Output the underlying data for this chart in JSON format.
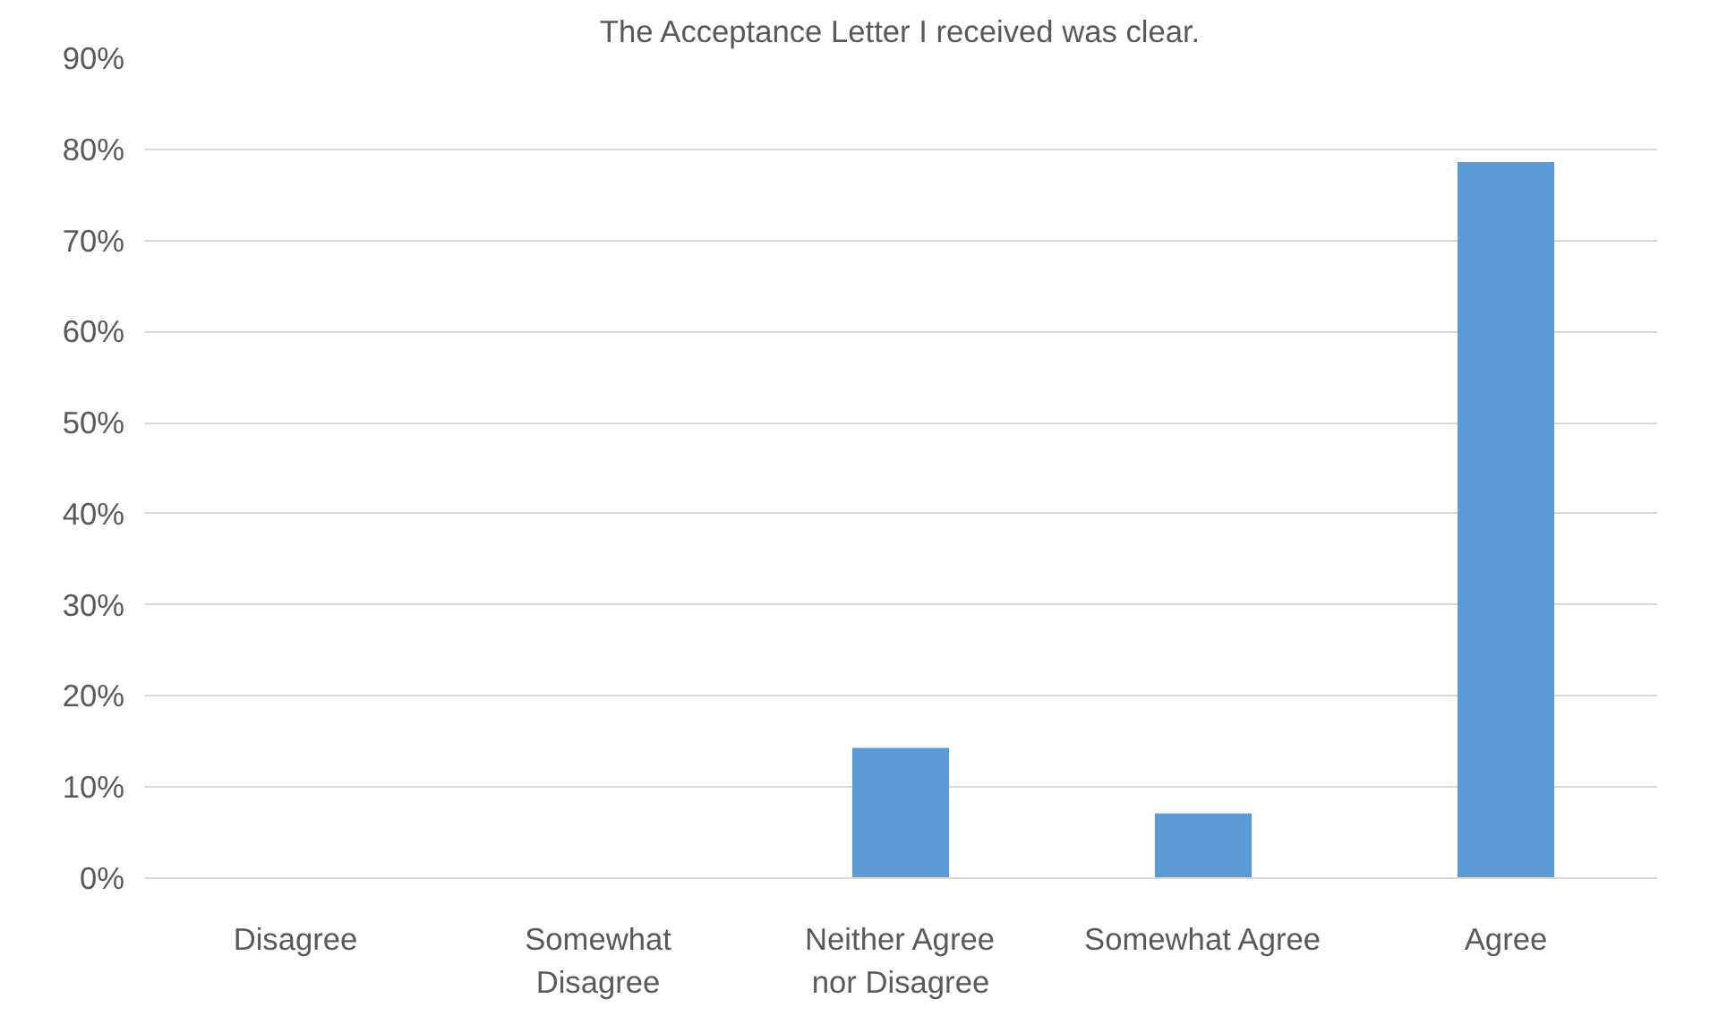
{
  "chart_data": {
    "type": "bar",
    "title": "The Acceptance Letter I received was clear.",
    "categories": [
      "Disagree",
      "Somewhat Disagree",
      "Neither Agree nor Disagree",
      "Somewhat Agree",
      "Agree"
    ],
    "values": [
      0,
      0,
      14.3,
      7.1,
      78.6
    ],
    "color": "#5b9bd5",
    "ylim": [
      0,
      90
    ],
    "yticks": [
      {
        "value": 0,
        "label": "0%"
      },
      {
        "value": 10,
        "label": "10%"
      },
      {
        "value": 20,
        "label": "20%"
      },
      {
        "value": 30,
        "label": "30%"
      },
      {
        "value": 40,
        "label": "40%"
      },
      {
        "value": 50,
        "label": "50%"
      },
      {
        "value": 60,
        "label": "60%"
      },
      {
        "value": 70,
        "label": "70%"
      },
      {
        "value": 80,
        "label": "80%"
      },
      {
        "value": 90,
        "label": "90%"
      }
    ],
    "grid": "y"
  }
}
